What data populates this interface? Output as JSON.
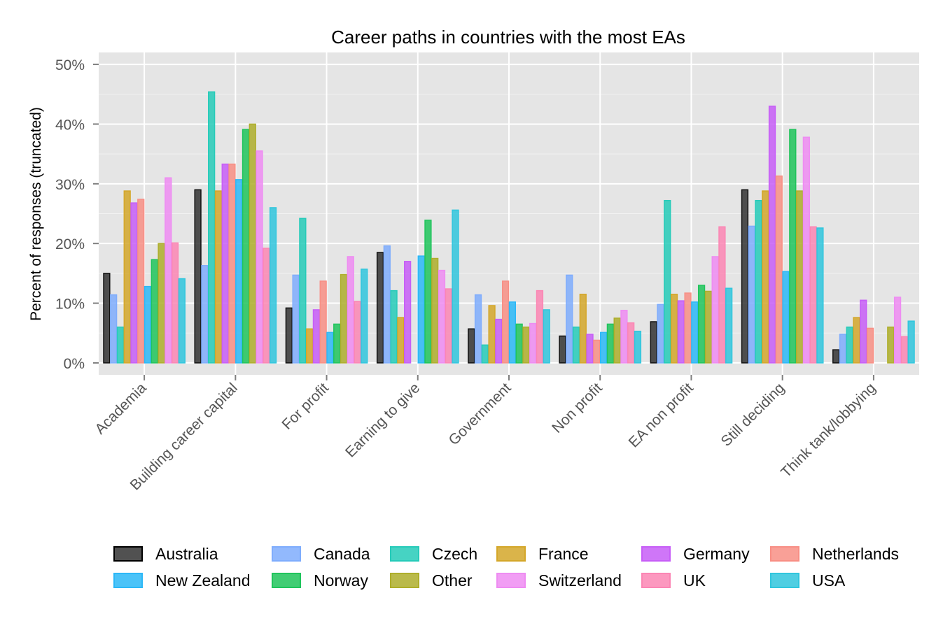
{
  "chart_data": {
    "type": "bar",
    "title": "Career paths in countries with the most EAs",
    "xlabel": "",
    "ylabel": "Percent of responses (truncated)",
    "ylim": [
      -2,
      52
    ],
    "yticks": [
      0,
      10,
      20,
      30,
      40,
      50
    ],
    "ytick_labels": [
      "0%",
      "10%",
      "20%",
      "30%",
      "40%",
      "50%"
    ],
    "grid": true,
    "legend_position": "bottom",
    "categories": [
      "Academia",
      "Building career capital",
      "For profit",
      "Earning to give",
      "Government",
      "Non profit",
      "EA non profit",
      "Still deciding",
      "Think tank/lobbying"
    ],
    "series": [
      {
        "name": "Australia",
        "color": "#333333",
        "values": [
          15.0,
          29.0,
          9.2,
          18.5,
          5.7,
          4.5,
          6.9,
          29.0,
          2.2
        ]
      },
      {
        "name": "Canada",
        "color": "#7fadfd",
        "values": [
          11.4,
          16.3,
          14.7,
          19.6,
          11.4,
          14.7,
          9.8,
          22.9,
          4.8
        ]
      },
      {
        "name": "Czech",
        "color": "#26cbb9",
        "values": [
          6.0,
          45.4,
          24.2,
          12.1,
          3.0,
          6.0,
          27.2,
          27.2,
          6.0
        ]
      },
      {
        "name": "France",
        "color": "#d4a72a",
        "values": [
          28.8,
          28.8,
          5.7,
          7.6,
          9.6,
          11.5,
          11.5,
          28.8,
          7.6
        ]
      },
      {
        "name": "Germany",
        "color": "#c75ef7",
        "values": [
          26.8,
          33.3,
          8.9,
          17.0,
          7.3,
          4.8,
          10.4,
          43.0,
          10.5
        ]
      },
      {
        "name": "Netherlands",
        "color": "#f88f85",
        "values": [
          27.4,
          33.3,
          13.7,
          0,
          13.7,
          3.8,
          11.7,
          31.3,
          5.8
        ]
      },
      {
        "name": "New Zealand",
        "color": "#2cb8f7",
        "values": [
          12.8,
          30.7,
          5.1,
          17.9,
          10.2,
          5.1,
          10.2,
          15.3,
          0
        ]
      },
      {
        "name": "Norway",
        "color": "#20c45c",
        "values": [
          17.3,
          39.1,
          6.5,
          23.9,
          6.5,
          6.5,
          13.0,
          39.1,
          0
        ]
      },
      {
        "name": "Other",
        "color": "#aeae2b",
        "values": [
          20.0,
          40.0,
          14.8,
          17.5,
          6.0,
          7.5,
          12.0,
          28.8,
          6.0
        ]
      },
      {
        "name": "Switzerland",
        "color": "#ee8cf2",
        "values": [
          31.0,
          35.5,
          17.8,
          15.5,
          6.6,
          8.8,
          17.8,
          37.8,
          11.0
        ]
      },
      {
        "name": "UK",
        "color": "#fb86b4",
        "values": [
          20.1,
          19.2,
          10.3,
          12.4,
          12.1,
          6.7,
          22.8,
          22.8,
          4.4
        ]
      },
      {
        "name": "USA",
        "color": "#30c6dd",
        "values": [
          14.1,
          26.0,
          15.7,
          25.6,
          8.9,
          5.3,
          12.5,
          22.6,
          7.0
        ]
      }
    ],
    "legend_order": [
      "Australia",
      "Canada",
      "Czech",
      "France",
      "Germany",
      "Netherlands",
      "New Zealand",
      "Norway",
      "Other",
      "Switzerland",
      "UK",
      "USA"
    ]
  }
}
